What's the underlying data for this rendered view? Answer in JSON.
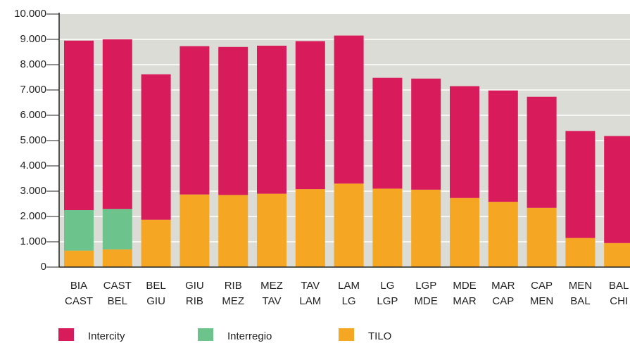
{
  "chart_data": {
    "type": "stacked-bar",
    "categories": [
      [
        "BIA",
        "CAST"
      ],
      [
        "CAST",
        "BEL"
      ],
      [
        "BEL",
        "GIU"
      ],
      [
        "GIU",
        "RIB"
      ],
      [
        "RIB",
        "MEZ"
      ],
      [
        "MEZ",
        "TAV"
      ],
      [
        "TAV",
        "LAM"
      ],
      [
        "LAM",
        "LG"
      ],
      [
        "LG",
        "LGP"
      ],
      [
        "LGP",
        "MDE"
      ],
      [
        "MDE",
        "MAR"
      ],
      [
        "MAR",
        "CAP"
      ],
      [
        "CAP",
        "MEN"
      ],
      [
        "MEN",
        "BAL"
      ],
      [
        "BAL",
        "CHI"
      ]
    ],
    "series": [
      {
        "name": "Intercity",
        "color": "#d81b5a",
        "values": [
          6700,
          6700,
          5750,
          5860,
          5850,
          5850,
          5850,
          5850,
          4380,
          4390,
          4420,
          4400,
          4390,
          4230,
          4230
        ]
      },
      {
        "name": "Interregio",
        "color": "#6cc48c",
        "values": [
          1600,
          1600,
          null,
          null,
          null,
          null,
          null,
          null,
          null,
          null,
          null,
          null,
          null,
          null,
          null
        ]
      },
      {
        "name": "TILO",
        "color": "#f5a623",
        "values": [
          650,
          700,
          1870,
          2870,
          2850,
          2900,
          3080,
          3300,
          3100,
          3060,
          2730,
          2580,
          2340,
          1150,
          950
        ]
      }
    ],
    "ylim": [
      0,
      10000
    ],
    "yticks": [
      0,
      {
        "value": 1000,
        "label": "1.000"
      },
      {
        "value": 2000,
        "label": "2.000"
      },
      {
        "value": 3000,
        "label": "3.000"
      },
      {
        "value": 4000,
        "label": "4.000"
      },
      {
        "value": 5000,
        "label": "5.000"
      },
      {
        "value": 6000,
        "label": "6.000"
      },
      {
        "value": 7000,
        "label": "7.000"
      },
      {
        "value": 8000,
        "label": "8.000"
      },
      {
        "value": 9000,
        "label": "9.000"
      },
      {
        "value": 10000,
        "label": "10.000"
      }
    ],
    "grid": true
  }
}
